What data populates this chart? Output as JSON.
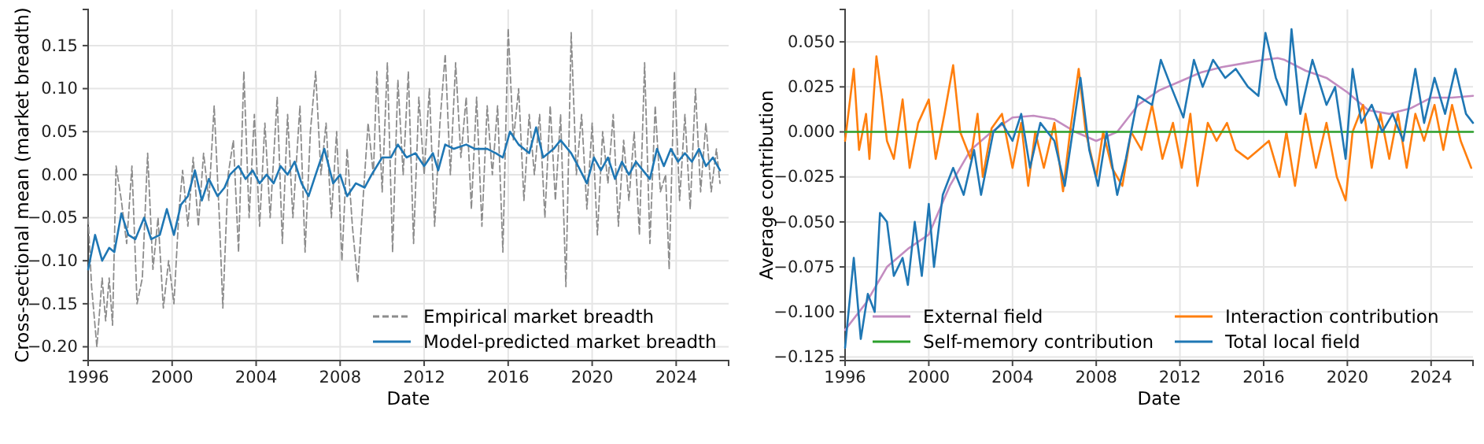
{
  "chart_data": [
    {
      "type": "line",
      "xlabel": "Date",
      "ylabel": "Cross-sectional mean (market breadth)",
      "xlim": [
        "1996-01",
        "2026-07"
      ],
      "xticks": [
        "1996",
        "2000",
        "2004",
        "2008",
        "2012",
        "2016",
        "2020",
        "2024"
      ],
      "ylim": [
        -0.216,
        0.192
      ],
      "yticks": [
        {
          "value": -0.2,
          "label": "−0.20"
        },
        {
          "value": -0.15,
          "label": "−0.15"
        },
        {
          "value": -0.1,
          "label": "−0.10"
        },
        {
          "value": -0.05,
          "label": "−0.05"
        },
        {
          "value": 0,
          "label": "0.00"
        },
        {
          "value": 0.05,
          "label": "0.05"
        },
        {
          "value": 0.1,
          "label": "0.10"
        },
        {
          "value": 0.15,
          "label": "0.15"
        }
      ],
      "grid": true,
      "legend": "bottom right",
      "series": [
        {
          "name": "Empirical market breadth",
          "color": "#8c8c8c",
          "line_style": "dashed",
          "x": [
            "1996-01",
            "1996-03",
            "1996-06",
            "1996-09",
            "1996-11",
            "1997-01",
            "1997-03",
            "1997-05",
            "1997-08",
            "1997-11",
            "1998-02",
            "1998-05",
            "1998-08",
            "1998-11",
            "1999-02",
            "1999-05",
            "1999-08",
            "1999-11",
            "2000-02",
            "2000-05",
            "2000-07",
            "2000-10",
            "2001-01",
            "2001-04",
            "2001-07",
            "2001-10",
            "2002-01",
            "2002-04",
            "2002-06",
            "2002-09",
            "2002-12",
            "2003-03",
            "2003-06",
            "2003-09",
            "2003-12",
            "2004-03",
            "2004-06",
            "2004-09",
            "2005-01",
            "2005-04",
            "2005-07",
            "2005-10",
            "2006-02",
            "2006-05",
            "2006-08",
            "2006-11",
            "2007-02",
            "2007-05",
            "2007-08",
            "2007-11",
            "2008-02",
            "2008-05",
            "2008-08",
            "2008-11",
            "2009-02",
            "2009-05",
            "2009-08",
            "2009-10",
            "2010-01",
            "2010-04",
            "2010-07",
            "2010-10",
            "2011-01",
            "2011-04",
            "2011-07",
            "2011-10",
            "2012-01",
            "2012-04",
            "2012-07",
            "2012-10",
            "2013-01",
            "2013-04",
            "2013-07",
            "2013-10",
            "2014-01",
            "2014-04",
            "2014-07",
            "2014-10",
            "2015-01",
            "2015-04",
            "2015-07",
            "2015-10",
            "2016-01",
            "2016-04",
            "2016-07",
            "2016-10",
            "2017-01",
            "2017-04",
            "2017-07",
            "2017-10",
            "2018-01",
            "2018-04",
            "2018-07",
            "2018-10",
            "2019-01",
            "2019-04",
            "2019-07",
            "2019-10",
            "2020-01",
            "2020-04",
            "2020-07",
            "2020-10",
            "2021-01",
            "2021-04",
            "2021-07",
            "2021-10",
            "2022-01",
            "2022-04",
            "2022-07",
            "2022-10",
            "2023-01",
            "2023-04",
            "2023-07",
            "2023-09",
            "2023-12",
            "2024-03",
            "2024-06",
            "2024-09",
            "2024-12",
            "2025-03",
            "2025-06",
            "2025-09",
            "2025-12",
            "2026-02"
          ],
          "values": [
            -0.05,
            -0.13,
            -0.2,
            -0.12,
            -0.17,
            -0.12,
            -0.175,
            0.01,
            -0.03,
            -0.08,
            0.01,
            -0.15,
            -0.12,
            0.025,
            -0.11,
            -0.05,
            -0.155,
            -0.1,
            -0.15,
            -0.04,
            0.005,
            -0.06,
            0.02,
            -0.06,
            0.025,
            -0.03,
            0.08,
            -0.05,
            -0.155,
            0.0,
            0.04,
            -0.09,
            0.12,
            -0.05,
            0.07,
            -0.06,
            0.06,
            -0.05,
            0.09,
            -0.08,
            0.07,
            -0.05,
            0.08,
            -0.09,
            0.05,
            0.12,
            0.0,
            0.06,
            -0.05,
            0.05,
            -0.1,
            0.03,
            -0.06,
            -0.125,
            -0.03,
            0.06,
            0.0,
            0.12,
            -0.02,
            0.13,
            -0.09,
            0.11,
            0.0,
            0.12,
            -0.08,
            0.09,
            0.0,
            0.1,
            -0.06,
            0.06,
            0.14,
            0.0,
            0.13,
            0.02,
            0.09,
            -0.04,
            0.09,
            -0.06,
            0.08,
            0.0,
            0.08,
            -0.09,
            0.17,
            0.04,
            0.1,
            -0.03,
            0.07,
            0.0,
            0.07,
            -0.05,
            0.08,
            -0.03,
            0.07,
            -0.13,
            0.165,
            0.0,
            0.07,
            -0.04,
            0.06,
            -0.07,
            0.05,
            -0.01,
            0.07,
            -0.06,
            0.04,
            -0.03,
            0.05,
            -0.07,
            0.13,
            -0.08,
            0.08,
            -0.02,
            0.0,
            -0.11,
            0.12,
            -0.03,
            0.07,
            -0.04,
            0.1,
            -0.02,
            0.06,
            -0.02,
            0.03,
            -0.01
          ]
        },
        {
          "name": "Model-predicted market breadth",
          "color": "#1f77b4",
          "line_style": "solid",
          "x": [
            "1996-01",
            "1996-05",
            "1996-09",
            "1997-01",
            "1997-04",
            "1997-08",
            "1997-12",
            "1998-04",
            "1998-09",
            "1999-01",
            "1999-06",
            "1999-10",
            "2000-02",
            "2000-06",
            "2000-10",
            "2001-02",
            "2001-06",
            "2001-10",
            "2002-03",
            "2002-07",
            "2002-10",
            "2003-03",
            "2003-07",
            "2003-11",
            "2004-03",
            "2004-07",
            "2004-11",
            "2005-03",
            "2005-07",
            "2005-11",
            "2006-03",
            "2006-07",
            "2006-11",
            "2007-04",
            "2007-09",
            "2008-01",
            "2008-05",
            "2008-10",
            "2009-03",
            "2009-07",
            "2010-01",
            "2010-06",
            "2010-10",
            "2011-03",
            "2011-08",
            "2012-01",
            "2012-06",
            "2012-09",
            "2013-01",
            "2013-06",
            "2014-01",
            "2014-06",
            "2015-01",
            "2015-06",
            "2015-10",
            "2016-02",
            "2016-07",
            "2017-01",
            "2017-05",
            "2017-09",
            "2018-03",
            "2018-07",
            "2019-01",
            "2019-05",
            "2019-10",
            "2020-02",
            "2020-06",
            "2020-10",
            "2021-02",
            "2021-06",
            "2021-10",
            "2022-02",
            "2022-06",
            "2022-10",
            "2023-02",
            "2023-06",
            "2023-10",
            "2024-02",
            "2024-06",
            "2024-10",
            "2025-02",
            "2025-06",
            "2025-10",
            "2026-02"
          ],
          "values": [
            -0.11,
            -0.07,
            -0.1,
            -0.085,
            -0.09,
            -0.045,
            -0.07,
            -0.075,
            -0.05,
            -0.075,
            -0.07,
            -0.04,
            -0.07,
            -0.035,
            -0.025,
            0.005,
            -0.03,
            -0.005,
            -0.025,
            -0.015,
            0.0,
            0.01,
            -0.005,
            0.005,
            -0.01,
            0.0,
            -0.01,
            0.01,
            0.0,
            0.015,
            -0.01,
            -0.025,
            0.0,
            0.03,
            -0.01,
            0.0,
            -0.025,
            -0.01,
            -0.015,
            0.0,
            0.02,
            0.02,
            0.035,
            0.02,
            0.025,
            0.01,
            0.025,
            0.005,
            0.035,
            0.03,
            0.035,
            0.03,
            0.03,
            0.025,
            0.02,
            0.05,
            0.035,
            0.025,
            0.055,
            0.02,
            0.03,
            0.04,
            0.025,
            0.01,
            -0.01,
            0.02,
            0.005,
            0.02,
            -0.005,
            0.015,
            0.0,
            0.015,
            0.005,
            -0.005,
            0.03,
            0.01,
            0.03,
            0.015,
            0.025,
            0.015,
            0.03,
            0.01,
            0.02,
            0.005
          ]
        }
      ]
    },
    {
      "type": "line",
      "xlabel": "Date",
      "ylabel": "Average contribution",
      "xlim": [
        "1996-01",
        "2026-01"
      ],
      "xticks": [
        "1996",
        "2000",
        "2004",
        "2008",
        "2012",
        "2016",
        "2020",
        "2024"
      ],
      "ylim": [
        -0.127,
        0.068
      ],
      "yticks": [
        {
          "value": -0.125,
          "label": "−0.125"
        },
        {
          "value": -0.1,
          "label": "−0.100"
        },
        {
          "value": -0.075,
          "label": "−0.075"
        },
        {
          "value": -0.05,
          "label": "−0.050"
        },
        {
          "value": -0.025,
          "label": "−0.025"
        },
        {
          "value": 0,
          "label": "0.000"
        },
        {
          "value": 0.025,
          "label": "0.025"
        },
        {
          "value": 0.05,
          "label": "0.050"
        }
      ],
      "grid": true,
      "legend": "bottom",
      "series": [
        {
          "name": "External field",
          "color": "#c38cc0",
          "x": [
            "1996",
            "1997",
            "1998",
            "1999",
            "2000",
            "2001",
            "2002",
            "2003",
            "2004",
            "2005",
            "2006",
            "2007",
            "2008",
            "2009",
            "2010",
            "2011",
            "2012",
            "2013",
            "2014",
            "2015",
            "2016",
            "2016-09",
            "2017",
            "2018",
            "2019",
            "2020",
            "2021",
            "2022",
            "2023",
            "2024",
            "2025",
            "2026"
          ],
          "values": [
            -0.11,
            -0.095,
            -0.075,
            -0.065,
            -0.057,
            -0.03,
            -0.01,
            0.0,
            0.008,
            0.009,
            0.007,
            0.0,
            -0.005,
            0.0,
            0.015,
            0.023,
            0.028,
            0.033,
            0.036,
            0.038,
            0.04,
            0.041,
            0.04,
            0.034,
            0.03,
            0.022,
            0.012,
            0.01,
            0.013,
            0.019,
            0.019,
            0.02
          ]
        },
        {
          "name": "Interaction contribution",
          "color": "#ff7f0e",
          "x": [
            "1996-01",
            "1996-06",
            "1996-09",
            "1997-01",
            "1997-03",
            "1997-07",
            "1997-10",
            "1998-01",
            "1998-05",
            "1998-10",
            "1999-02",
            "1999-07",
            "2000-01",
            "2000-05",
            "2000-10",
            "2001-03",
            "2001-07",
            "2002-01",
            "2002-05",
            "2002-08",
            "2003-01",
            "2003-07",
            "2004-01",
            "2004-06",
            "2004-10",
            "2005-02",
            "2005-07",
            "2006-01",
            "2006-06",
            "2006-10",
            "2007-03",
            "2007-07",
            "2008-01",
            "2008-05",
            "2008-10",
            "2009-04",
            "2009-09",
            "2010-03",
            "2010-09",
            "2011-03",
            "2011-09",
            "2012-02",
            "2012-07",
            "2012-11",
            "2013-05",
            "2013-10",
            "2014-04",
            "2014-09",
            "2015-04",
            "2015-10",
            "2016-04",
            "2016-10",
            "2017-02",
            "2017-07",
            "2018-01",
            "2018-07",
            "2019-01",
            "2019-07",
            "2019-12",
            "2020-04",
            "2020-10",
            "2021-03",
            "2021-08",
            "2022-01",
            "2022-06",
            "2022-11",
            "2023-04",
            "2023-09",
            "2024-03",
            "2024-08",
            "2025-01",
            "2025-06",
            "2025-12"
          ],
          "values": [
            -0.005,
            0.035,
            -0.01,
            0.01,
            -0.015,
            0.042,
            0.02,
            -0.005,
            -0.015,
            0.018,
            -0.02,
            0.005,
            0.018,
            -0.015,
            0.01,
            0.037,
            0.0,
            -0.015,
            0.01,
            -0.025,
            0.002,
            0.01,
            -0.02,
            0.005,
            -0.03,
            0.0,
            -0.02,
            0.005,
            -0.033,
            0.0,
            0.035,
            0.0,
            -0.025,
            0.0,
            -0.02,
            -0.03,
            0.0,
            -0.01,
            0.015,
            -0.015,
            0.005,
            -0.02,
            0.01,
            -0.03,
            0.005,
            -0.005,
            0.005,
            -0.01,
            -0.015,
            -0.01,
            -0.005,
            -0.025,
            0.0,
            -0.03,
            0.01,
            -0.02,
            0.005,
            -0.025,
            -0.038,
            0.0,
            0.015,
            -0.02,
            0.01,
            -0.015,
            0.01,
            -0.02,
            0.01,
            -0.005,
            0.015,
            -0.01,
            0.015,
            -0.005,
            -0.02
          ]
        },
        {
          "name": "Self-memory contribution",
          "color": "#2ca02c",
          "x": [
            "1996",
            "2011",
            "2026"
          ],
          "values": [
            0.0,
            0.0,
            0.0
          ]
        },
        {
          "name": "Total local field",
          "color": "#1f77b4",
          "x": [
            "1996-01",
            "1996-06",
            "1996-10",
            "1997-02",
            "1997-06",
            "1997-09",
            "1998-01",
            "1998-05",
            "1998-10",
            "1999-01",
            "1999-05",
            "1999-09",
            "2000-01",
            "2000-04",
            "2000-09",
            "2001-03",
            "2001-09",
            "2002-03",
            "2002-07",
            "2003-02",
            "2003-07",
            "2004-01",
            "2004-06",
            "2004-11",
            "2005-05",
            "2006-01",
            "2006-07",
            "2007-04",
            "2007-09",
            "2008-02",
            "2008-07",
            "2009-01",
            "2009-06",
            "2010-01",
            "2010-09",
            "2011-02",
            "2011-08",
            "2012-03",
            "2012-09",
            "2013-02",
            "2013-08",
            "2014-03",
            "2014-09",
            "2015-04",
            "2015-10",
            "2016-02",
            "2016-08",
            "2017-02",
            "2017-05",
            "2017-10",
            "2018-05",
            "2019-01",
            "2019-06",
            "2019-12",
            "2020-04",
            "2020-09",
            "2021-03",
            "2021-09",
            "2022-03",
            "2022-09",
            "2023-04",
            "2023-09",
            "2024-03",
            "2024-09",
            "2025-03",
            "2025-09",
            "2026-01"
          ],
          "values": [
            -0.12,
            -0.07,
            -0.115,
            -0.09,
            -0.1,
            -0.045,
            -0.05,
            -0.08,
            -0.07,
            -0.085,
            -0.05,
            -0.08,
            -0.04,
            -0.075,
            -0.035,
            -0.02,
            -0.035,
            -0.01,
            -0.035,
            0.0,
            0.005,
            -0.005,
            0.01,
            -0.02,
            0.005,
            -0.005,
            -0.03,
            0.03,
            -0.01,
            -0.03,
            0.0,
            -0.035,
            -0.015,
            0.02,
            0.015,
            0.04,
            0.025,
            0.008,
            0.04,
            0.025,
            0.04,
            0.03,
            0.035,
            0.025,
            0.02,
            0.055,
            0.03,
            0.015,
            0.057,
            0.01,
            0.04,
            0.015,
            0.025,
            -0.015,
            0.035,
            0.005,
            0.015,
            0.0,
            0.01,
            -0.005,
            0.035,
            0.005,
            0.03,
            0.01,
            0.035,
            0.01,
            0.005
          ]
        }
      ]
    }
  ]
}
